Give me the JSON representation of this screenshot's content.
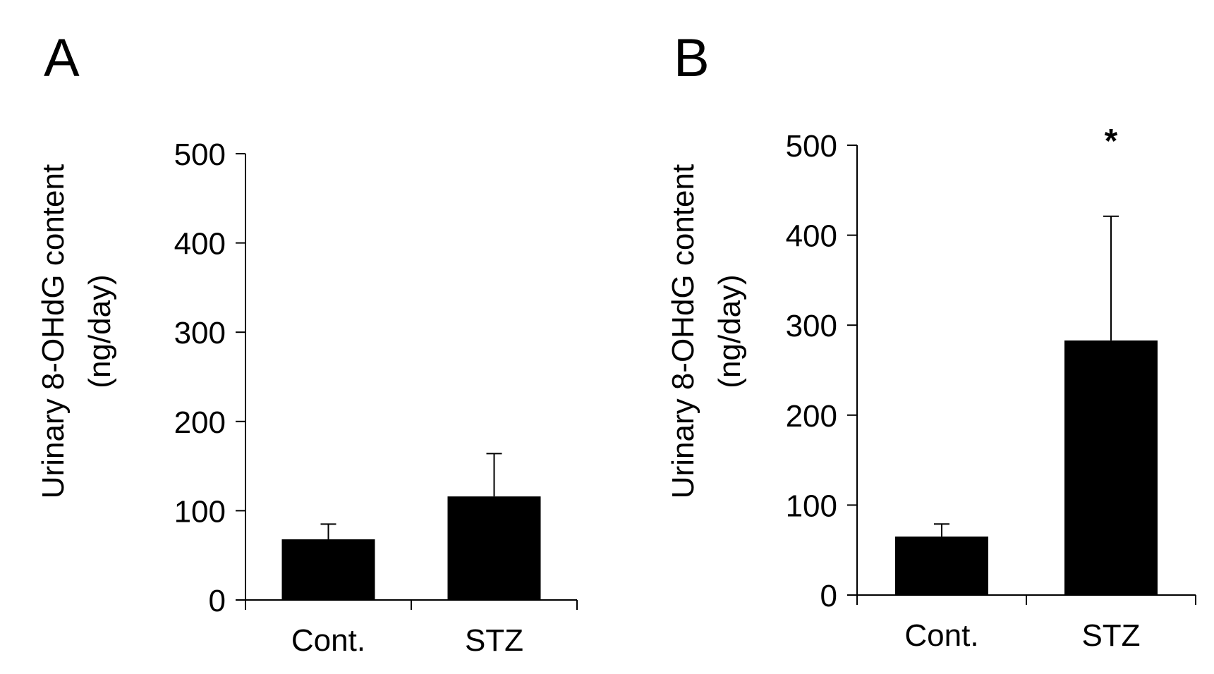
{
  "chart_data": [
    {
      "type": "bar",
      "panel_label": "A",
      "categories": [
        "Cont.",
        "STZ"
      ],
      "values": [
        68,
        116
      ],
      "errors": [
        17,
        48
      ],
      "ylabel_line1": "Urinary 8-OHdG content",
      "ylabel_line2": "(ng/day)",
      "ylim": [
        0,
        500
      ],
      "yticks": [
        0,
        100,
        200,
        300,
        400,
        500
      ],
      "ytick_labels": [
        "0",
        "100",
        "200",
        "300",
        "400",
        "500"
      ],
      "annotations": [],
      "bar_color": "#000000"
    },
    {
      "type": "bar",
      "panel_label": "B",
      "categories": [
        "Cont.",
        "STZ"
      ],
      "values": [
        65,
        283
      ],
      "errors": [
        14,
        138
      ],
      "ylabel_line1": "Urinary 8-OHdG content",
      "ylabel_line2": "(ng/day)",
      "ylim": [
        0,
        500
      ],
      "yticks": [
        0,
        100,
        200,
        300,
        400,
        500
      ],
      "ytick_labels": [
        "0",
        "100",
        "200",
        "300",
        "400",
        "500"
      ],
      "annotations": [
        {
          "category_index": 1,
          "text": "*"
        }
      ],
      "bar_color": "#000000"
    }
  ]
}
